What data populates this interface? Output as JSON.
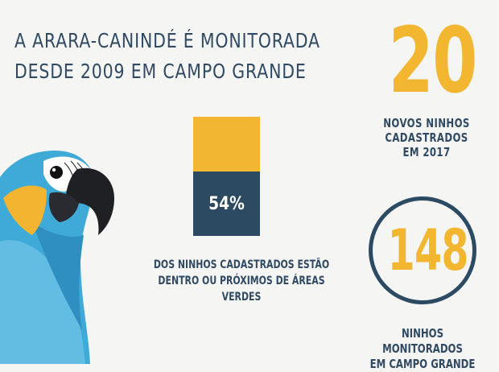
{
  "headline": {
    "line1": "A ARARA-CANINDÉ É MONITORADA",
    "line2": "DESDE 2009 EM CAMPO GRANDE"
  },
  "stat_new_nests": {
    "value": "20",
    "caption": [
      "NOVOS NINHOS",
      "CADASTRADOS",
      "EM 2017"
    ]
  },
  "stat_green_areas": {
    "value": "54%",
    "fraction": 0.54,
    "caption": [
      "DOS NINHOS CADASTRADOS ESTÃO",
      "DENTRO OU PRÓXIMOS DE ÁREAS VERDES"
    ]
  },
  "stat_monitored": {
    "value": "148",
    "caption": [
      "NINHOS MONITORADOS",
      "EM CAMPO GRANDE"
    ]
  },
  "colors": {
    "accent_yellow": "#f2b630",
    "navy": "#2d4a63",
    "parrot_blue": "#3fa9d8",
    "parrot_yellow": "#f3b52f"
  }
}
